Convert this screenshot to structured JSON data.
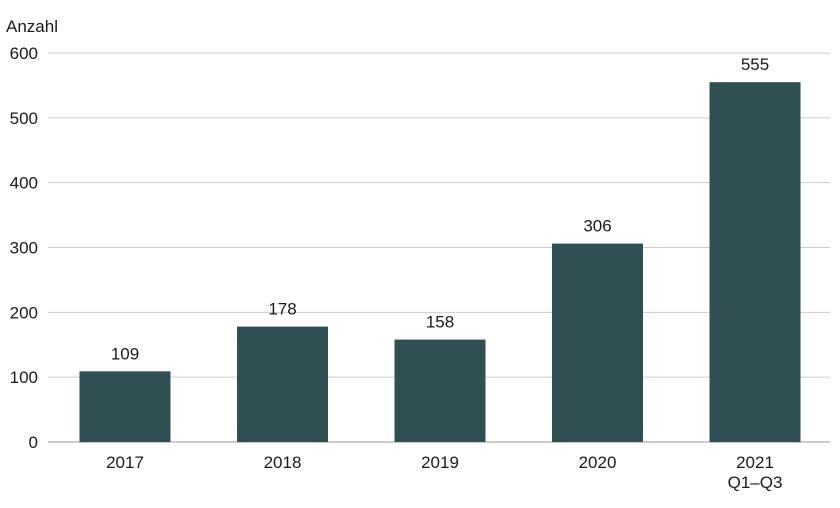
{
  "chart_data": {
    "type": "bar",
    "ylabel": "Anzahl",
    "categories": [
      [
        "2017"
      ],
      [
        "2018"
      ],
      [
        "2019"
      ],
      [
        "2020"
      ],
      [
        "2021",
        "Q1–Q3"
      ]
    ],
    "values": [
      109,
      178,
      158,
      306,
      555
    ],
    "value_labels": [
      "109",
      "178",
      "158",
      "306",
      "555"
    ],
    "ylim": [
      0,
      600
    ],
    "yticks": [
      0,
      100,
      200,
      300,
      400,
      500,
      600
    ],
    "grid": true,
    "legend": "none",
    "colors": {
      "bar": "#2f4f52",
      "grid": "#cccccc",
      "axis": "#999999"
    }
  }
}
